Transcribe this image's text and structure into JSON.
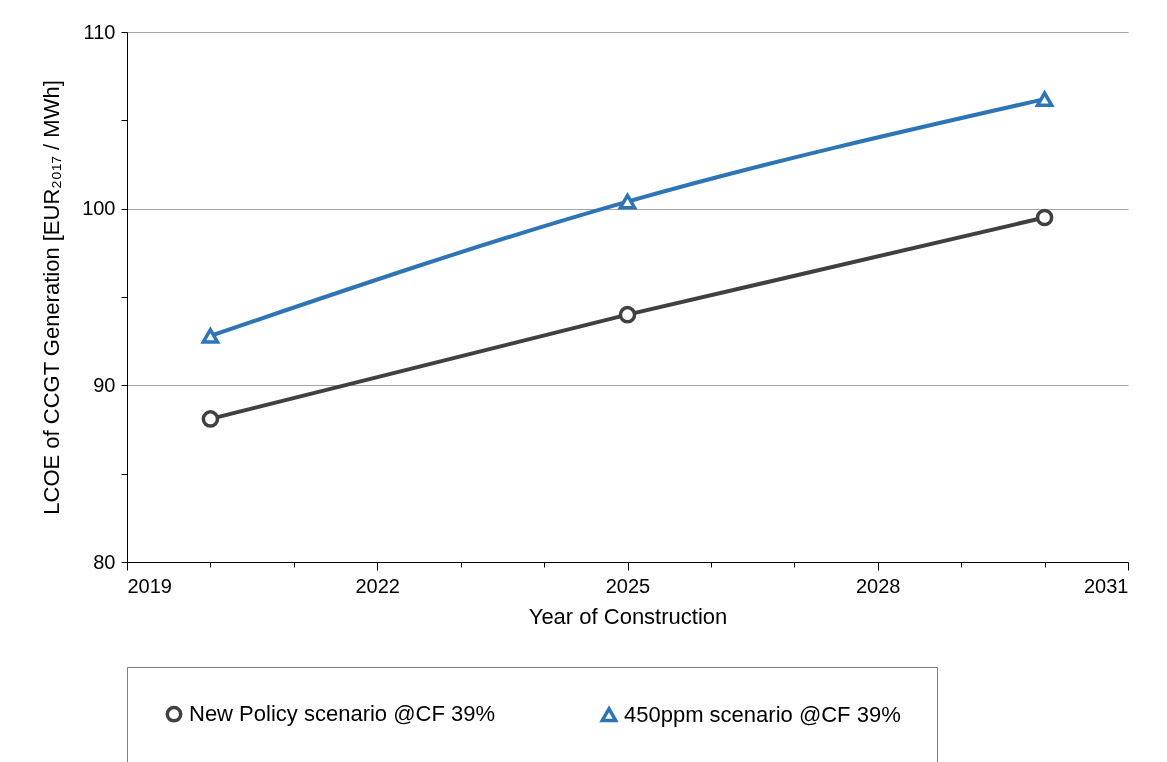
{
  "chart_data": {
    "type": "line",
    "xlabel": "Year of Construction",
    "ylabel": "LCOE of CCGT Generation  [EUR₂₀₁₇ / MWh]",
    "x": [
      2020,
      2025,
      2030
    ],
    "series": [
      {
        "name": "New Policy scenario @CF 39%",
        "color": "#404040",
        "marker": "circle",
        "values": [
          88.1,
          94.0,
          99.5
        ]
      },
      {
        "name": "450ppm scenario @CF 39%",
        "color": "#2e75b6",
        "marker": "triangle",
        "values": [
          92.8,
          100.4,
          106.2
        ]
      }
    ],
    "xlim": [
      2019,
      2031
    ],
    "xticks": [
      2019,
      {
        "value": 2020,
        "label": null
      },
      {
        "value": 2021,
        "label": null
      },
      2022,
      {
        "value": 2023,
        "label": null
      },
      {
        "value": 2024,
        "label": null
      },
      2025,
      {
        "value": 2026,
        "label": null
      },
      {
        "value": 2027,
        "label": null
      },
      2028,
      {
        "value": 2029,
        "label": null
      },
      {
        "value": 2030,
        "label": null
      },
      2031
    ],
    "ylim": [
      80,
      110
    ],
    "yticks": [
      80,
      {
        "value": 85,
        "label": null
      },
      90,
      {
        "value": 95,
        "label": null
      },
      100,
      {
        "value": 105,
        "label": null
      },
      110
    ],
    "grid": "y",
    "legend": "bottom",
    "line_style": "solid"
  }
}
